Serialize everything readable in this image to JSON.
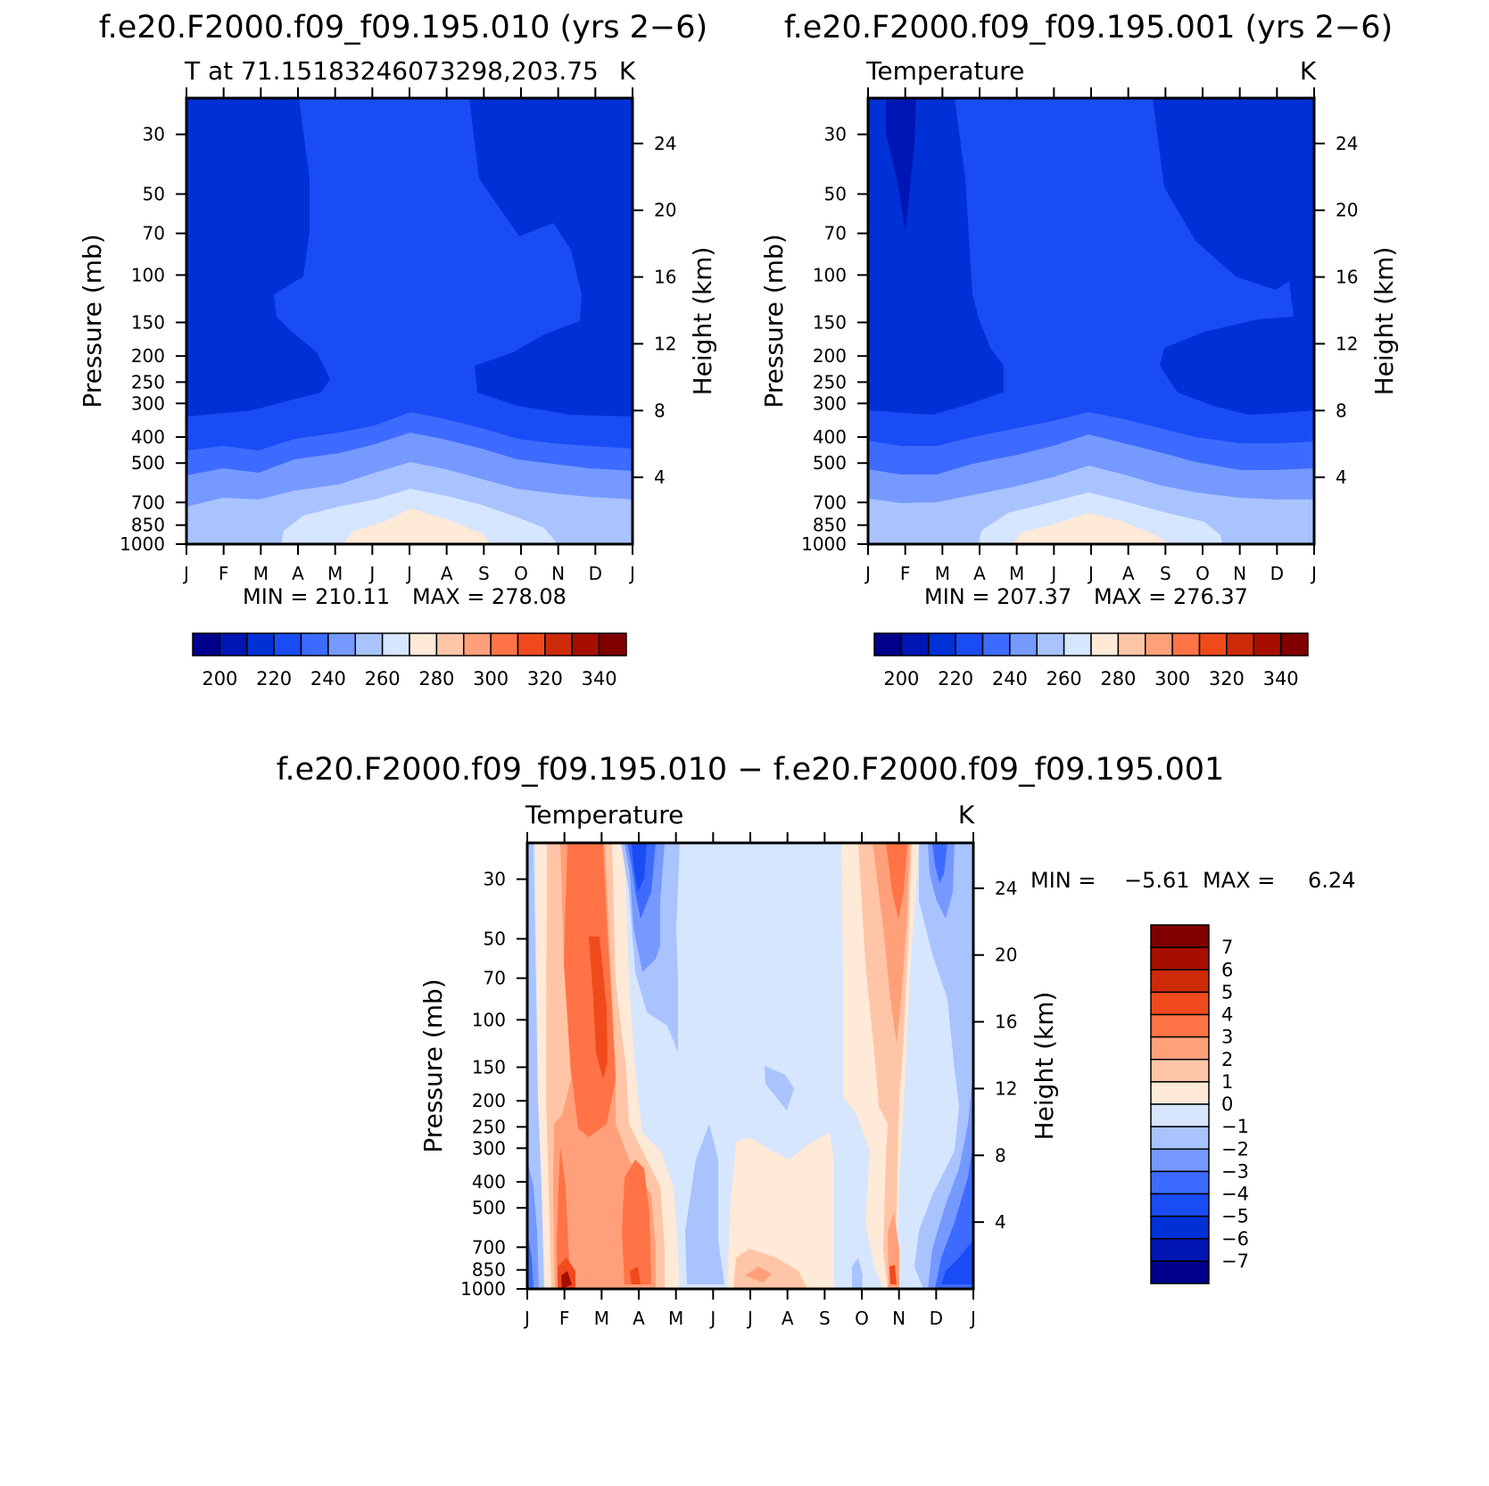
{
  "chart_data": [
    {
      "type": "heatmap",
      "id": "panel-a",
      "title": "f.e20.F2000.f09_f09.195.010 (yrs 2−6)",
      "subtitle_left": "T at 71.15183246073298,203.75",
      "subtitle_right": "K",
      "ylabel": "Pressure (mb)",
      "ylabel_right": "Height (km)",
      "x_categories": [
        "J",
        "F",
        "M",
        "A",
        "M",
        "J",
        "J",
        "A",
        "S",
        "O",
        "N",
        "D",
        "J"
      ],
      "pressure_ticks": [
        "30",
        "50",
        "70",
        "100",
        "150",
        "200",
        "250",
        "300",
        "400",
        "500",
        "700",
        "850",
        "1000"
      ],
      "pressure_values": [
        30,
        50,
        70,
        100,
        150,
        200,
        250,
        300,
        400,
        500,
        700,
        850,
        1000
      ],
      "height_ticks": [
        "24",
        "20",
        "16",
        "12",
        "8",
        "4"
      ],
      "height_values": [
        24,
        20,
        16,
        12,
        8,
        4
      ],
      "ylim": [
        1000,
        22
      ],
      "min_text": "MIN = 210.11",
      "max_text": "MAX = 278.08",
      "colorbar": {
        "orientation": "horizontal",
        "labels": [
          "200",
          "220",
          "240",
          "260",
          "280",
          "300",
          "320",
          "340"
        ],
        "levels": [
          200,
          210,
          220,
          230,
          240,
          250,
          260,
          270,
          280,
          290,
          300,
          310,
          320,
          330,
          340
        ],
        "colors": [
          "#00008c",
          "#0016b4",
          "#0031d6",
          "#1a4cf5",
          "#3d6bff",
          "#7599ff",
          "#a9c3ff",
          "#d6e6ff",
          "#ffe9d7",
          "#ffc5a6",
          "#ffa07a",
          "#ff7346",
          "#f04a1c",
          "#cc2a08",
          "#a60f00",
          "#800000"
        ]
      },
      "contour_values_K": {
        "note": "approximate temperatures read from fill colors, rows = pressure levels 30..1000 hPa, cols = months J..J",
        "rows": [
          [
            218,
            218,
            218,
            222,
            222,
            222,
            222,
            222,
            218,
            218,
            218,
            218,
            218
          ],
          [
            218,
            218,
            218,
            222,
            222,
            222,
            222,
            222,
            218,
            218,
            218,
            218,
            218
          ],
          [
            218,
            218,
            218,
            222,
            222,
            222,
            222,
            222,
            222,
            218,
            218,
            218,
            218
          ],
          [
            218,
            218,
            218,
            222,
            222,
            222,
            222,
            222,
            222,
            222,
            218,
            218,
            218
          ],
          [
            218,
            218,
            222,
            222,
            222,
            222,
            222,
            222,
            222,
            222,
            222,
            218,
            218
          ],
          [
            218,
            218,
            218,
            222,
            222,
            222,
            222,
            222,
            218,
            218,
            218,
            218,
            218
          ],
          [
            218,
            218,
            218,
            222,
            222,
            222,
            222,
            222,
            218,
            218,
            218,
            218,
            218
          ],
          [
            218,
            218,
            218,
            218,
            222,
            222,
            222,
            222,
            218,
            218,
            218,
            218,
            218
          ],
          [
            226,
            226,
            226,
            228,
            230,
            232,
            232,
            230,
            228,
            226,
            226,
            226,
            226
          ],
          [
            236,
            236,
            236,
            238,
            240,
            242,
            244,
            242,
            240,
            238,
            236,
            236,
            236
          ],
          [
            250,
            250,
            250,
            252,
            254,
            256,
            258,
            256,
            254,
            252,
            250,
            250,
            250
          ],
          [
            256,
            256,
            256,
            262,
            264,
            268,
            272,
            268,
            264,
            260,
            258,
            256,
            256
          ],
          [
            258,
            258,
            258,
            264,
            268,
            272,
            275,
            272,
            268,
            264,
            260,
            258,
            258
          ]
        ]
      }
    },
    {
      "type": "heatmap",
      "id": "panel-b",
      "title": "f.e20.F2000.f09_f09.195.001 (yrs 2−6)",
      "subtitle_left": "Temperature",
      "subtitle_right": "K",
      "ylabel": "Pressure (mb)",
      "ylabel_right": "Height (km)",
      "x_categories": [
        "J",
        "F",
        "M",
        "A",
        "M",
        "J",
        "J",
        "A",
        "S",
        "O",
        "N",
        "D",
        "J"
      ],
      "pressure_ticks": [
        "30",
        "50",
        "70",
        "100",
        "150",
        "200",
        "250",
        "300",
        "400",
        "500",
        "700",
        "850",
        "1000"
      ],
      "pressure_values": [
        30,
        50,
        70,
        100,
        150,
        200,
        250,
        300,
        400,
        500,
        700,
        850,
        1000
      ],
      "height_ticks": [
        "24",
        "20",
        "16",
        "12",
        "8",
        "4"
      ],
      "height_values": [
        24,
        20,
        16,
        12,
        8,
        4
      ],
      "ylim": [
        1000,
        22
      ],
      "min_text": "MIN = 207.37",
      "max_text": "MAX = 276.37",
      "colorbar": {
        "orientation": "horizontal",
        "labels": [
          "200",
          "220",
          "240",
          "260",
          "280",
          "300",
          "320",
          "340"
        ],
        "levels": [
          200,
          210,
          220,
          230,
          240,
          250,
          260,
          270,
          280,
          290,
          300,
          310,
          320,
          330,
          340
        ],
        "colors": [
          "#00008c",
          "#0016b4",
          "#0031d6",
          "#1a4cf5",
          "#3d6bff",
          "#7599ff",
          "#a9c3ff",
          "#d6e6ff",
          "#ffe9d7",
          "#ffc5a6",
          "#ffa07a",
          "#ff7346",
          "#f04a1c",
          "#cc2a08",
          "#a60f00",
          "#800000"
        ]
      }
    },
    {
      "type": "heatmap",
      "id": "panel-c",
      "title": "f.e20.F2000.f09_f09.195.010 − f.e20.F2000.f09_f09.195.001",
      "subtitle_left": "Temperature",
      "subtitle_right": "K",
      "ylabel": "Pressure (mb)",
      "ylabel_right": "Height (km)",
      "x_categories": [
        "J",
        "F",
        "M",
        "A",
        "M",
        "J",
        "J",
        "A",
        "S",
        "O",
        "N",
        "D",
        "J"
      ],
      "pressure_ticks": [
        "30",
        "50",
        "70",
        "100",
        "150",
        "200",
        "250",
        "300",
        "400",
        "500",
        "700",
        "850",
        "1000"
      ],
      "pressure_values": [
        30,
        50,
        70,
        100,
        150,
        200,
        250,
        300,
        400,
        500,
        700,
        850,
        1000
      ],
      "height_ticks": [
        "24",
        "20",
        "16",
        "12",
        "8",
        "4"
      ],
      "height_values": [
        24,
        20,
        16,
        12,
        8,
        4
      ],
      "ylim": [
        1000,
        22
      ],
      "min_text": "MIN =",
      "min_value": "−5.61",
      "max_text": "MAX =",
      "max_value": "6.24",
      "colorbar": {
        "orientation": "vertical",
        "labels": [
          "7",
          "6",
          "5",
          "4",
          "3",
          "2",
          "1",
          "0",
          "−1",
          "−2",
          "−3",
          "−4",
          "−5",
          "−6",
          "−7"
        ],
        "levels": [
          7,
          6,
          5,
          4,
          3,
          2,
          1,
          0,
          -1,
          -2,
          -3,
          -4,
          -5,
          -6,
          -7
        ],
        "colors": [
          "#800000",
          "#a60f00",
          "#cc2a08",
          "#f04a1c",
          "#ff7346",
          "#ffa07a",
          "#ffc5a6",
          "#ffe9d7",
          "#d6e6ff",
          "#a9c3ff",
          "#7599ff",
          "#3d6bff",
          "#1a4cf5",
          "#0031d6",
          "#0016b4",
          "#00008c"
        ]
      }
    }
  ]
}
